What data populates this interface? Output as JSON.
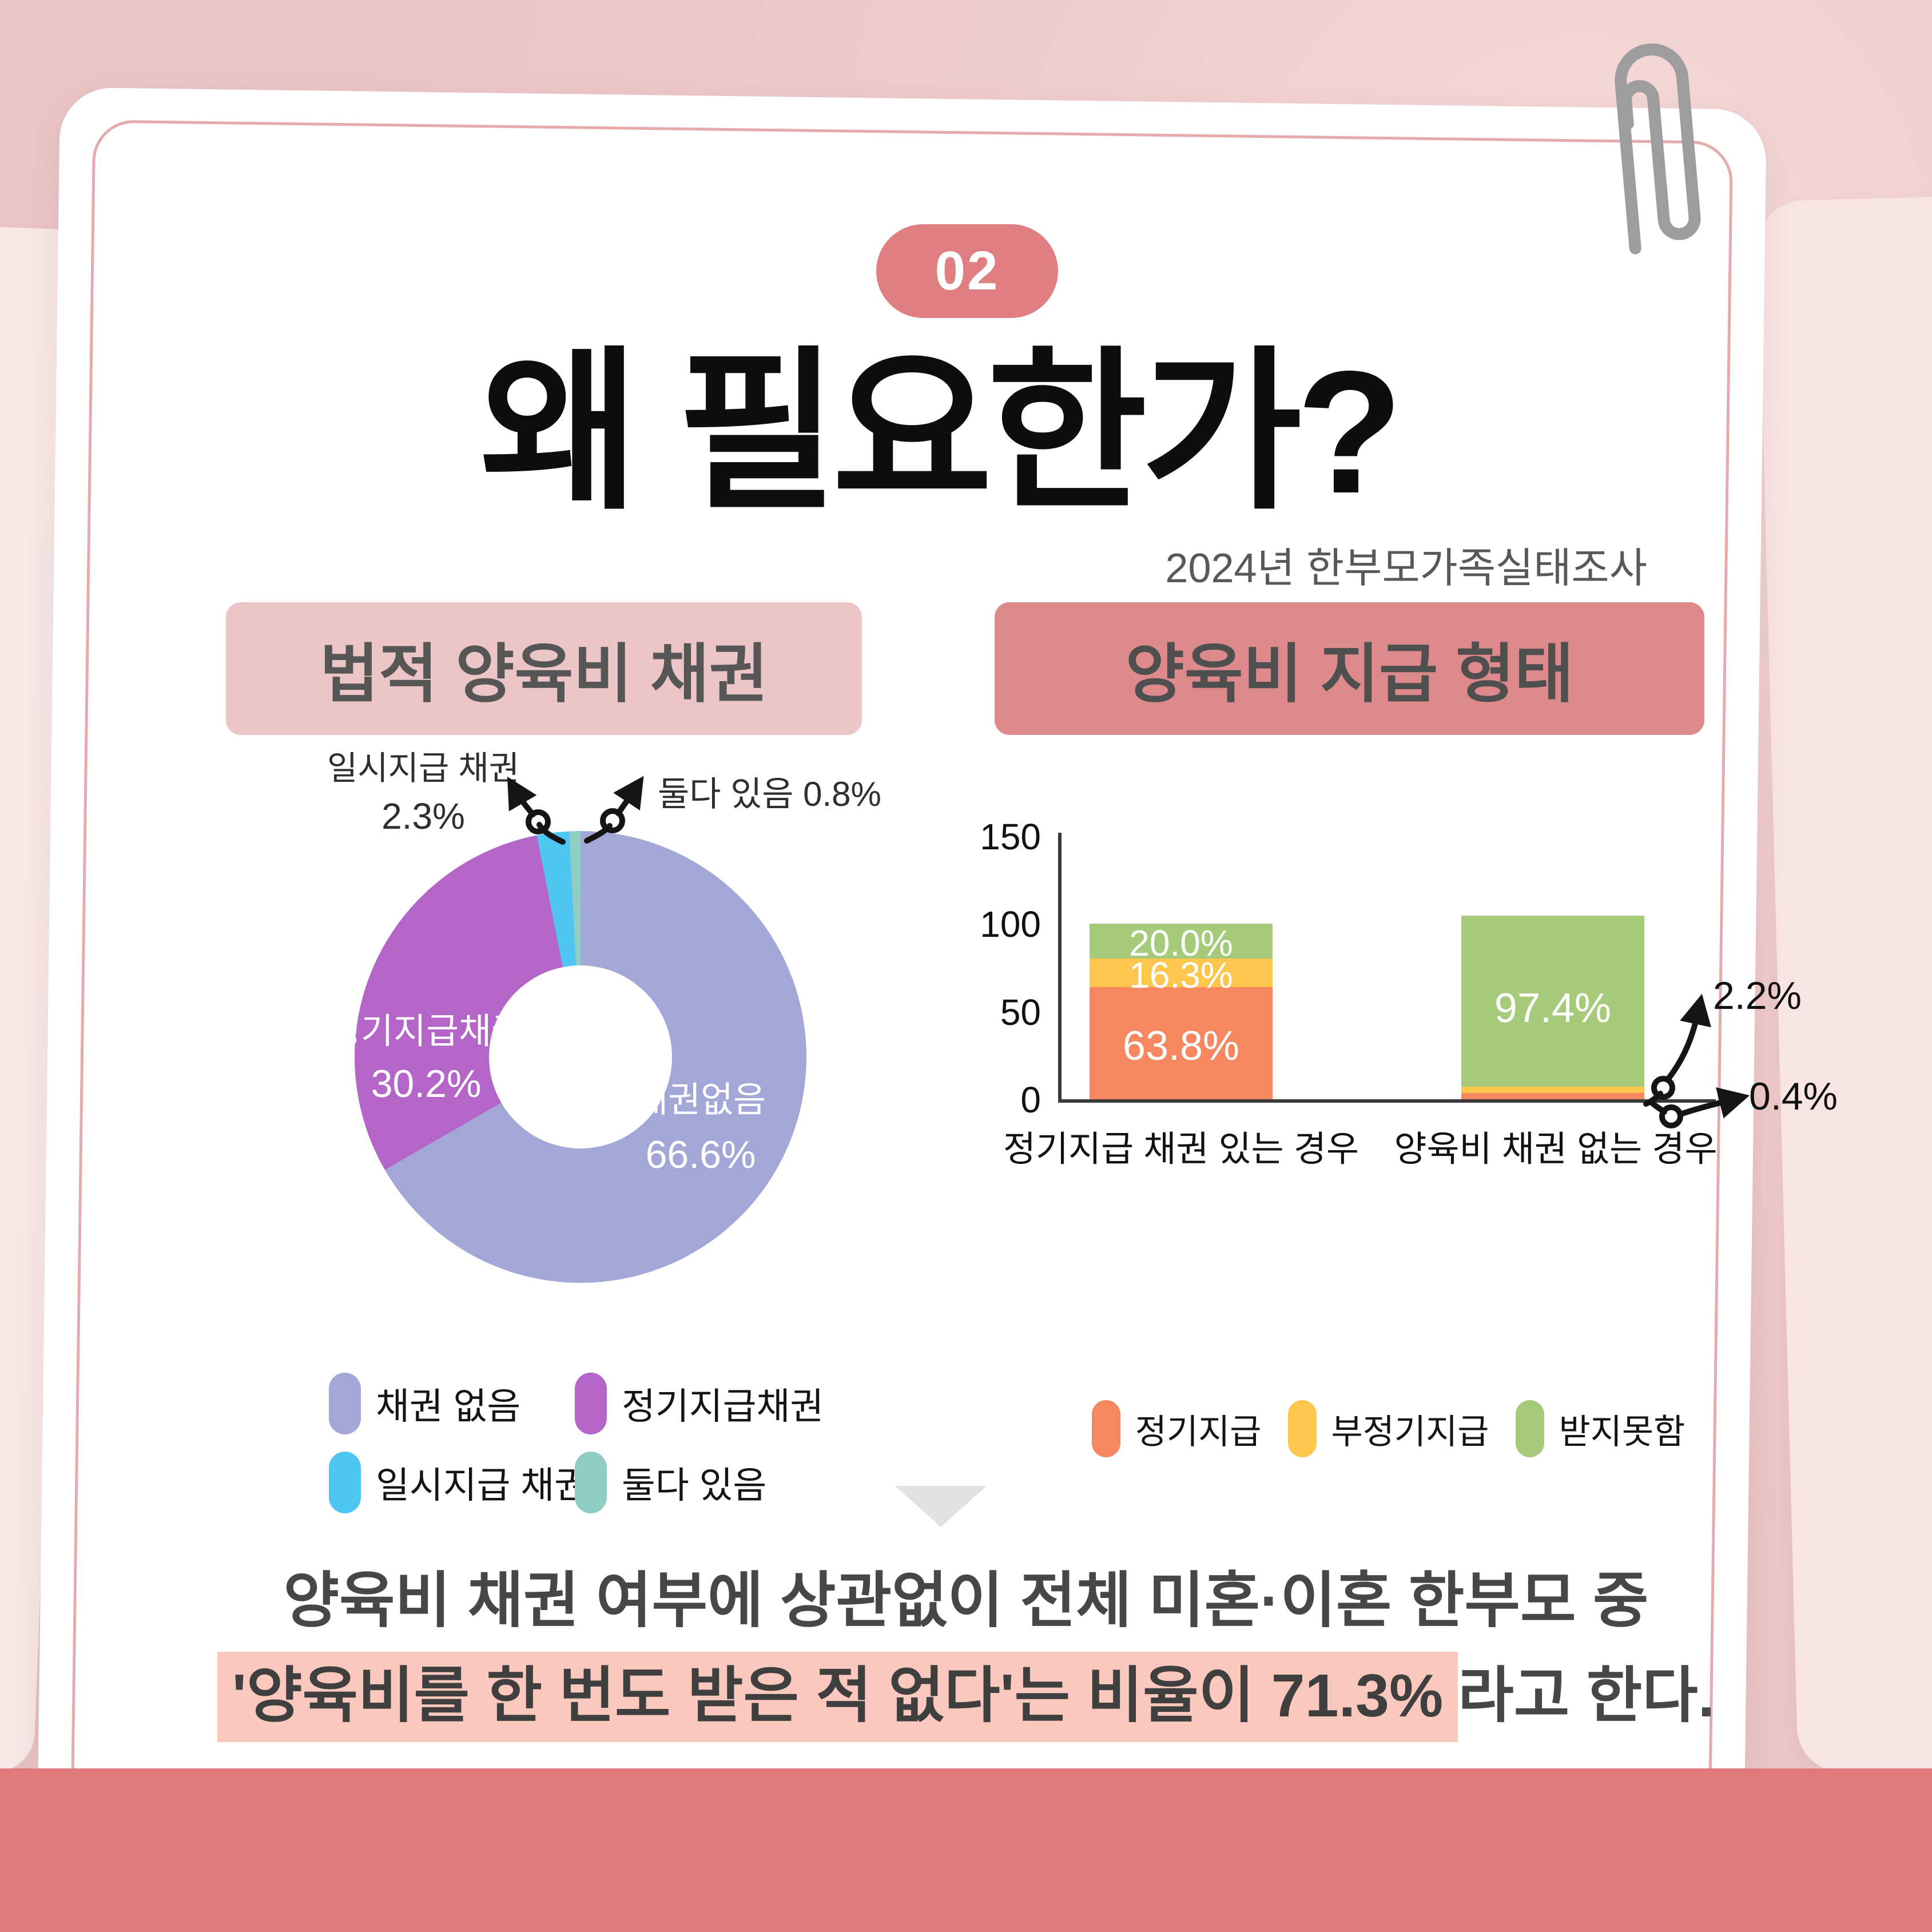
{
  "page": {
    "badge_label": "02",
    "title": "왜 필요한가?",
    "subtitle": "2024년 한부모가족실태조사"
  },
  "sections": {
    "left_header": "법적 양육비 채권",
    "right_header": "양육비 지급 형태"
  },
  "donut_chart": {
    "callout_lump_sum_line1": "일시지급 채권",
    "callout_lump_sum_line2": "2.3%",
    "callout_both": "둘다 있음 0.8%",
    "inner_label_regular_name": "정기지급채권",
    "inner_label_regular_value": "30.2%",
    "inner_label_none_name": "채권없음",
    "inner_label_none_value": "66.6%",
    "legend": [
      {
        "label": "채권 없음",
        "color": "#a3a7d8"
      },
      {
        "label": "정기지급채권",
        "color": "#b366c8"
      },
      {
        "label": "일시지급 채권",
        "color": "#4fc5f2"
      },
      {
        "label": "둘다 있음",
        "color": "#8fcdc2"
      }
    ]
  },
  "bar_chart": {
    "ytick_labels": [
      "0",
      "50",
      "100",
      "150"
    ],
    "categories": [
      "정기지급 채권 있는 경우",
      "양육비 채권 없는 경우"
    ],
    "segment_labels": {
      "bar1_regular": "63.8%",
      "bar1_irregular": "16.3%",
      "bar1_none": "20.0%",
      "bar2_none": "97.4%"
    },
    "callout_irregular": "2.2%",
    "callout_regular": "0.4%",
    "legend": [
      {
        "label": "정기지급",
        "color": "#f6875f"
      },
      {
        "label": "부정기지급",
        "color": "#fcc74c"
      },
      {
        "label": "받지못함",
        "color": "#a5ca79"
      }
    ]
  },
  "footer": {
    "line1": "양육비 채권 여부에 상관없이 전체 미혼·이혼 한부모 중",
    "line2_highlight": "'양육비를 한 번도 받은 적 없다'는 비율이 71.3%",
    "line2_rest": "라고 한다."
  },
  "colors": {
    "background_pink": "#eecaca",
    "card_white": "#ffffff",
    "inner_border_pink": "#e5aaac",
    "bottom_bar_coral": "#e0797b",
    "badge_coral": "#e07f81",
    "header_left_bg": "#ecc5c7",
    "header_right_bg": "#de898c",
    "highlight_pink": "#fbc8be",
    "triangle_gray": "#e2e2e2",
    "paperclip_gray": "#9d9d9d",
    "axis_dark": "#3a3a3a"
  },
  "chart_data": [
    {
      "type": "pie",
      "subtype": "donut",
      "title": "법적 양육비 채권",
      "categories": [
        "채권없음",
        "정기지급채권",
        "일시지급 채권",
        "둘다 있음"
      ],
      "values": [
        66.6,
        30.2,
        2.3,
        0.8
      ],
      "colors": [
        "#a3a7d8",
        "#b366c8",
        "#4fc5f2",
        "#8fcdc2"
      ],
      "unit": "%",
      "start_angle": "top",
      "direction": "clockwise",
      "legend_position": "bottom"
    },
    {
      "type": "bar",
      "stacked": true,
      "title": "양육비 지급 형태",
      "categories": [
        "정기지급 채권 있는 경우",
        "양육비 채권 없는 경우"
      ],
      "series": [
        {
          "name": "정기지급",
          "values": [
            63.8,
            0.4
          ],
          "color": "#f6875f"
        },
        {
          "name": "부정기지급",
          "values": [
            16.3,
            2.2
          ],
          "color": "#fcc74c"
        },
        {
          "name": "받지못함",
          "values": [
            20.0,
            97.4
          ],
          "color": "#a5ca79"
        }
      ],
      "ylim": [
        0,
        150
      ],
      "yticks": [
        0,
        50,
        100,
        150
      ],
      "grid": false,
      "unit": "%",
      "legend_position": "bottom"
    }
  ]
}
